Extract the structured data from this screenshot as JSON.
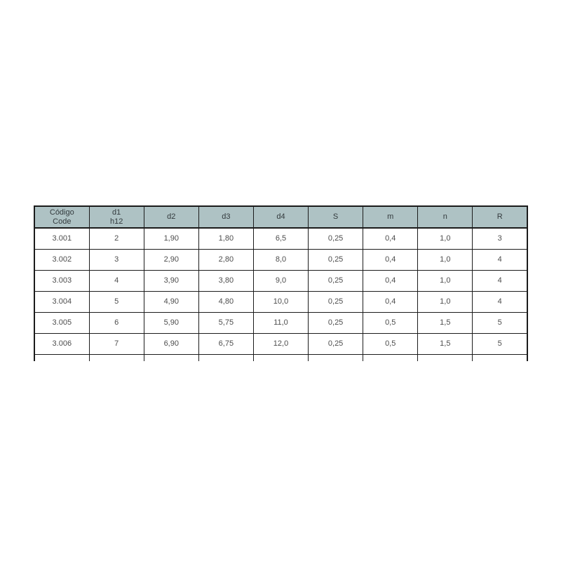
{
  "colors": {
    "header_bg": "#aec2c4",
    "border_color": "#1b1b1b",
    "header_text": "#333a3d",
    "body_text": "#4d4d4d",
    "page_bg": "#ffffff"
  },
  "table": {
    "headers": [
      [
        "Código",
        "Code"
      ],
      [
        "d1",
        "h12"
      ],
      [
        "d2"
      ],
      [
        "d3"
      ],
      [
        "d4"
      ],
      [
        "S"
      ],
      [
        "m"
      ],
      [
        "n"
      ],
      [
        "R"
      ]
    ],
    "rows": [
      [
        "3.001",
        "2",
        "1,90",
        "1,80",
        "6,5",
        "0,25",
        "0,4",
        "1,0",
        "3"
      ],
      [
        "3.002",
        "3",
        "2,90",
        "2,80",
        "8,0",
        "0,25",
        "0,4",
        "1,0",
        "4"
      ],
      [
        "3.003",
        "4",
        "3,90",
        "3,80",
        "9,0",
        "0,25",
        "0,4",
        "1,0",
        "4"
      ],
      [
        "3.004",
        "5",
        "4,90",
        "4,80",
        "10,0",
        "0,25",
        "0,4",
        "1,0",
        "4"
      ],
      [
        "3.005",
        "6",
        "5,90",
        "5,75",
        "11,0",
        "0,25",
        "0,5",
        "1,5",
        "5"
      ],
      [
        "3.006",
        "7",
        "6,90",
        "6,75",
        "12,0",
        "0,25",
        "0,5",
        "1,5",
        "5"
      ]
    ]
  }
}
